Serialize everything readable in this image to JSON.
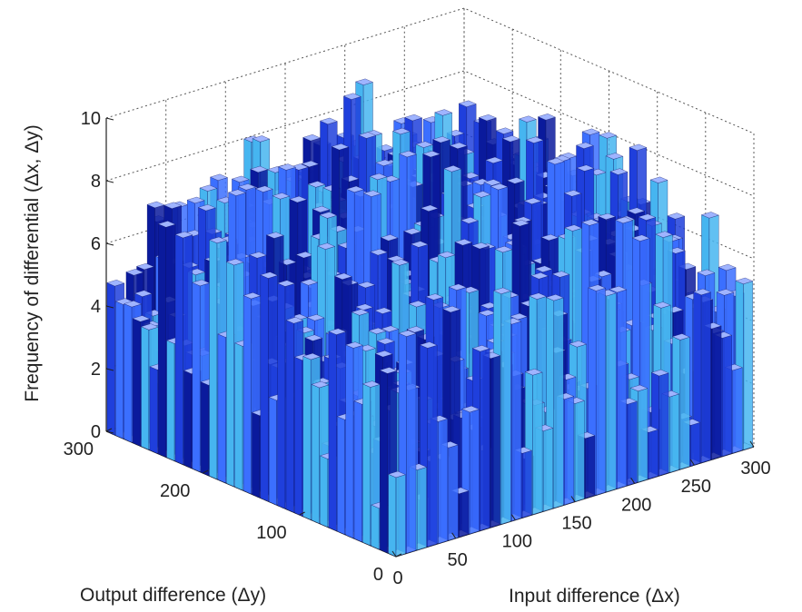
{
  "chart_data": {
    "type": "bar3d",
    "title": "",
    "xlabel": "Input difference (Δx)",
    "ylabel": "Output difference (Δy)",
    "zlabel": "Frequency of differential (Δx, Δy)",
    "x_ticks": [
      "0",
      "50",
      "100",
      "150",
      "200",
      "250",
      "300"
    ],
    "y_ticks": [
      "0",
      "100",
      "200",
      "300"
    ],
    "z_ticks": [
      "0",
      "2",
      "4",
      "6",
      "8",
      "10"
    ],
    "xlim": [
      0,
      300
    ],
    "ylim": [
      0,
      300
    ],
    "zlim": [
      0,
      10
    ],
    "grid": true,
    "colormap": [
      "#0a1a9c",
      "#1f3fdc",
      "#3b6fff",
      "#46b5f0"
    ],
    "sampled_heights": [
      4,
      6,
      2,
      8,
      4,
      6,
      2,
      10,
      4,
      6,
      8,
      2,
      4,
      6,
      4,
      8,
      2,
      6,
      4,
      2,
      6,
      8,
      4,
      6,
      2,
      4,
      8,
      6,
      4,
      2,
      6,
      4,
      8,
      6,
      2,
      4,
      6,
      4,
      2,
      8,
      6,
      4,
      2,
      6,
      4,
      8,
      4,
      6,
      2,
      4,
      6,
      8,
      4,
      2,
      6,
      4,
      6,
      8,
      2,
      4
    ]
  }
}
